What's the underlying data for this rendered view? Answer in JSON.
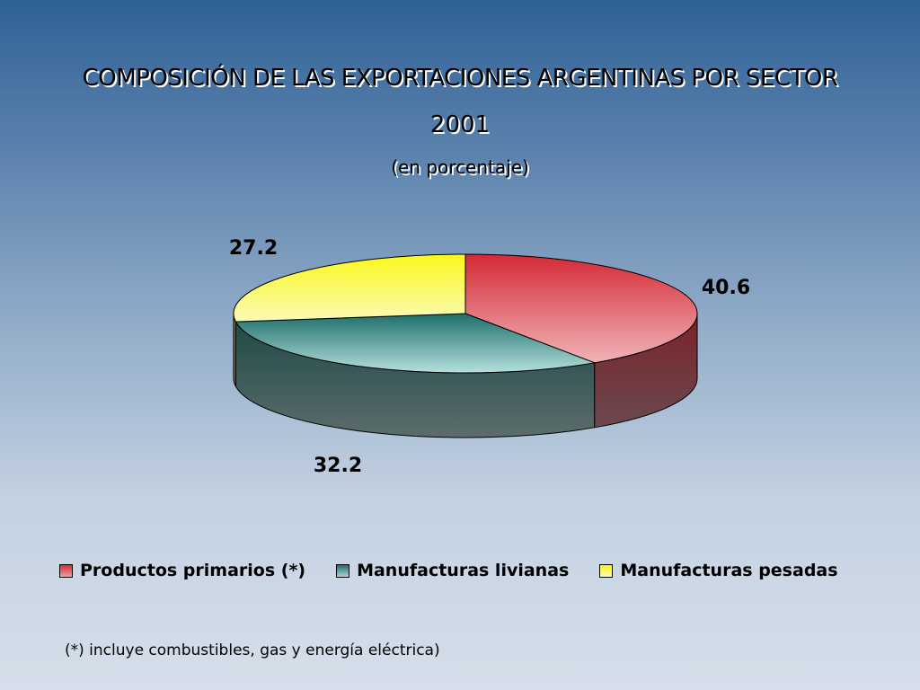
{
  "title": "COMPOSICIÓN DE LAS EXPORTACIONES ARGENTINAS POR SECTOR",
  "year": "2001",
  "subtitle": "(en porcentaje)",
  "footnote": "(*) incluye combustibles, gas y energía eléctrica)",
  "chart_data": {
    "type": "pie",
    "style": "3d",
    "slices": [
      {
        "label": "Productos primarios (*)",
        "value": 40.6,
        "value_label": "40.6",
        "color": "#d42a35"
      },
      {
        "label": "Manufacturas livianas",
        "value": 32.2,
        "value_label": "32.2",
        "color": "#2c8a86"
      },
      {
        "label": "Manufacturas pesadas",
        "value": 27.2,
        "value_label": "27.2",
        "color": "#f4f230"
      }
    ],
    "legend_position": "bottom"
  },
  "legend": [
    {
      "label": "Productos primarios (*)",
      "color": "#d64a55"
    },
    {
      "label": "Manufacturas livianas",
      "color": "#3a9a96"
    },
    {
      "label": "Manufacturas pesadas",
      "color": "#f6f436"
    }
  ]
}
